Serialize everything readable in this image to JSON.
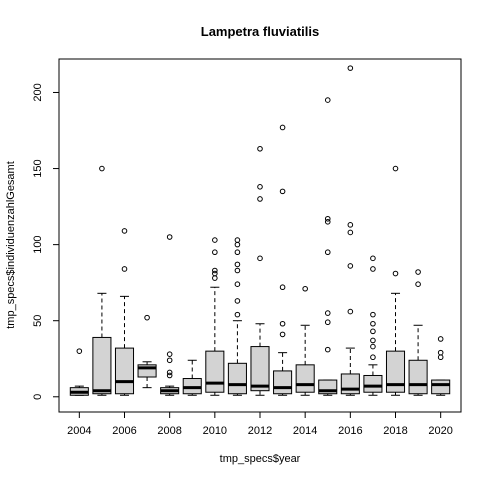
{
  "chart_data": {
    "type": "boxplot",
    "title": "Lampetra fluviatilis",
    "xlabel": "tmp_specs$year",
    "ylabel": "tmp_specs$individuenzahlGesamt",
    "ylim": [
      -10,
      222
    ],
    "y_ticks": [
      0,
      50,
      100,
      150,
      200
    ],
    "x_tick_labels": [
      "2004",
      "2006",
      "2008",
      "2010",
      "2012",
      "2014",
      "2016",
      "2018",
      "2020"
    ],
    "grid": false,
    "legend": "none",
    "box_fill": "#d3d3d3",
    "categories": [
      "2004",
      "2005",
      "2006",
      "2007",
      "2008",
      "2009",
      "2010",
      "2011",
      "2012",
      "2013",
      "2014",
      "2015",
      "2016",
      "2017",
      "2018",
      "2019",
      "2020"
    ],
    "boxes": [
      {
        "year": "2004",
        "whisker_low": 1,
        "q1": 1,
        "median": 3,
        "q3": 6,
        "whisker_high": 7,
        "outliers": [
          30
        ]
      },
      {
        "year": "2005",
        "whisker_low": 1,
        "q1": 2,
        "median": 4,
        "q3": 39,
        "whisker_high": 68,
        "outliers": [
          150
        ]
      },
      {
        "year": "2006",
        "whisker_low": 1,
        "q1": 2,
        "median": 10,
        "q3": 32,
        "whisker_high": 66,
        "outliers": [
          84,
          109
        ]
      },
      {
        "year": "2007",
        "whisker_low": 6,
        "q1": 13,
        "median": 19,
        "q3": 21,
        "whisker_high": 23,
        "outliers": [
          52
        ]
      },
      {
        "year": "2008",
        "whisker_low": 1,
        "q1": 2,
        "median": 4,
        "q3": 6,
        "whisker_high": 7,
        "outliers": [
          14,
          16,
          24,
          28,
          105
        ]
      },
      {
        "year": "2009",
        "whisker_low": 1,
        "q1": 2,
        "median": 6,
        "q3": 12,
        "whisker_high": 24,
        "outliers": []
      },
      {
        "year": "2010",
        "whisker_low": 1,
        "q1": 3,
        "median": 9,
        "q3": 30,
        "whisker_high": 72,
        "outliers": [
          78,
          81,
          83,
          95,
          103
        ]
      },
      {
        "year": "2011",
        "whisker_low": 1,
        "q1": 2,
        "median": 8,
        "q3": 22,
        "whisker_high": 50,
        "outliers": [
          54,
          63,
          74,
          83,
          87,
          95,
          100,
          103
        ]
      },
      {
        "year": "2012",
        "whisker_low": 1,
        "q1": 4,
        "median": 7,
        "q3": 33,
        "whisker_high": 48,
        "outliers": [
          91,
          130,
          138,
          163
        ]
      },
      {
        "year": "2013",
        "whisker_low": 1,
        "q1": 2,
        "median": 6,
        "q3": 17,
        "whisker_high": 29,
        "outliers": [
          41,
          48,
          72,
          135,
          177
        ]
      },
      {
        "year": "2014",
        "whisker_low": 1,
        "q1": 3,
        "median": 8,
        "q3": 21,
        "whisker_high": 47,
        "outliers": [
          71
        ]
      },
      {
        "year": "2015",
        "whisker_low": 1,
        "q1": 2,
        "median": 4,
        "q3": 11,
        "whisker_high": 11,
        "outliers": [
          31,
          49,
          55,
          95,
          115,
          117,
          195
        ]
      },
      {
        "year": "2016",
        "whisker_low": 1,
        "q1": 2,
        "median": 5,
        "q3": 15,
        "whisker_high": 32,
        "outliers": [
          56,
          86,
          108,
          113,
          216
        ]
      },
      {
        "year": "2017",
        "whisker_low": 1,
        "q1": 3,
        "median": 7,
        "q3": 14,
        "whisker_high": 21,
        "outliers": [
          26,
          33,
          37,
          43,
          48,
          54,
          84,
          91
        ]
      },
      {
        "year": "2018",
        "whisker_low": 1,
        "q1": 3,
        "median": 8,
        "q3": 30,
        "whisker_high": 68,
        "outliers": [
          81,
          150
        ]
      },
      {
        "year": "2019",
        "whisker_low": 1,
        "q1": 2,
        "median": 8,
        "q3": 24,
        "whisker_high": 47,
        "outliers": [
          74,
          82
        ]
      },
      {
        "year": "2020",
        "whisker_low": 1,
        "q1": 2,
        "median": 8,
        "q3": 11,
        "whisker_high": 11,
        "outliers": [
          26,
          29,
          38
        ]
      }
    ]
  }
}
